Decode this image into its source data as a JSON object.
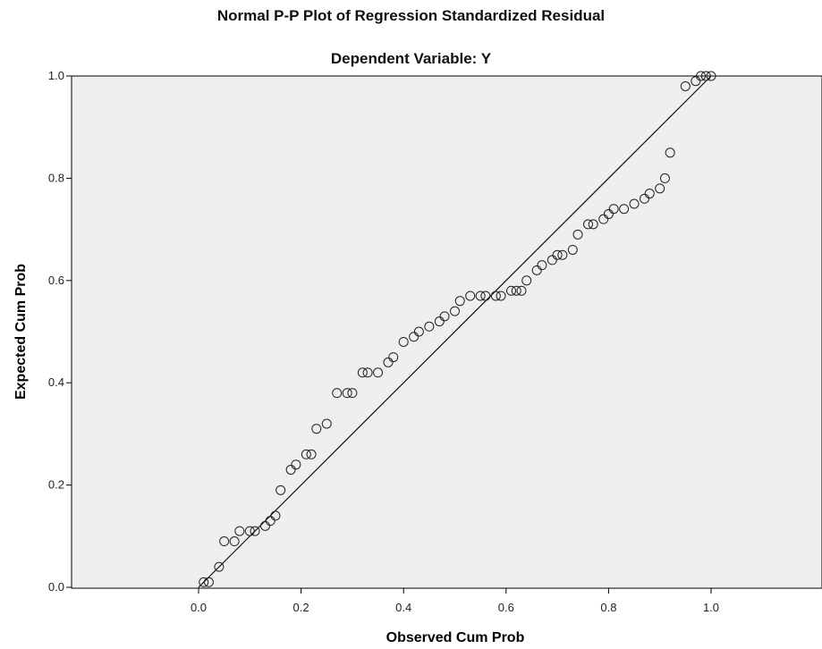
{
  "chart_data": {
    "type": "scatter",
    "title": "Normal P-P Plot of Regression Standardized Residual",
    "subtitle": "Dependent Variable: Y",
    "xlabel": "Observed Cum Prob",
    "ylabel": "Expected Cum Prob",
    "xlim": [
      0,
      1
    ],
    "ylim": [
      0,
      1
    ],
    "x_tick_labels": [
      "0.0",
      "0.2",
      "0.4",
      "0.6",
      "0.8",
      "1.0"
    ],
    "y_tick_labels": [
      "0.0",
      "0.2",
      "0.4",
      "0.6",
      "0.8",
      "1.0"
    ],
    "x_ticks": [
      0,
      0.2,
      0.4,
      0.6,
      0.8,
      1.0
    ],
    "y_ticks": [
      0,
      0.2,
      0.4,
      0.6,
      0.8,
      1.0
    ],
    "reference_line": {
      "x": [
        0,
        1
      ],
      "y": [
        0,
        1
      ]
    },
    "plot_background": "#efefef",
    "marker": "open-circle",
    "points": [
      {
        "x": 0.01,
        "y": 0.01
      },
      {
        "x": 0.02,
        "y": 0.01
      },
      {
        "x": 0.04,
        "y": 0.04
      },
      {
        "x": 0.05,
        "y": 0.09
      },
      {
        "x": 0.07,
        "y": 0.09
      },
      {
        "x": 0.08,
        "y": 0.11
      },
      {
        "x": 0.1,
        "y": 0.11
      },
      {
        "x": 0.11,
        "y": 0.11
      },
      {
        "x": 0.13,
        "y": 0.12
      },
      {
        "x": 0.14,
        "y": 0.13
      },
      {
        "x": 0.15,
        "y": 0.14
      },
      {
        "x": 0.16,
        "y": 0.19
      },
      {
        "x": 0.18,
        "y": 0.23
      },
      {
        "x": 0.19,
        "y": 0.24
      },
      {
        "x": 0.21,
        "y": 0.26
      },
      {
        "x": 0.22,
        "y": 0.26
      },
      {
        "x": 0.23,
        "y": 0.31
      },
      {
        "x": 0.25,
        "y": 0.32
      },
      {
        "x": 0.27,
        "y": 0.38
      },
      {
        "x": 0.29,
        "y": 0.38
      },
      {
        "x": 0.3,
        "y": 0.38
      },
      {
        "x": 0.32,
        "y": 0.42
      },
      {
        "x": 0.33,
        "y": 0.42
      },
      {
        "x": 0.35,
        "y": 0.42
      },
      {
        "x": 0.37,
        "y": 0.44
      },
      {
        "x": 0.38,
        "y": 0.45
      },
      {
        "x": 0.4,
        "y": 0.48
      },
      {
        "x": 0.42,
        "y": 0.49
      },
      {
        "x": 0.43,
        "y": 0.5
      },
      {
        "x": 0.45,
        "y": 0.51
      },
      {
        "x": 0.47,
        "y": 0.52
      },
      {
        "x": 0.48,
        "y": 0.53
      },
      {
        "x": 0.5,
        "y": 0.54
      },
      {
        "x": 0.51,
        "y": 0.56
      },
      {
        "x": 0.53,
        "y": 0.57
      },
      {
        "x": 0.55,
        "y": 0.57
      },
      {
        "x": 0.56,
        "y": 0.57
      },
      {
        "x": 0.58,
        "y": 0.57
      },
      {
        "x": 0.59,
        "y": 0.57
      },
      {
        "x": 0.61,
        "y": 0.58
      },
      {
        "x": 0.62,
        "y": 0.58
      },
      {
        "x": 0.63,
        "y": 0.58
      },
      {
        "x": 0.64,
        "y": 0.6
      },
      {
        "x": 0.66,
        "y": 0.62
      },
      {
        "x": 0.67,
        "y": 0.63
      },
      {
        "x": 0.69,
        "y": 0.64
      },
      {
        "x": 0.7,
        "y": 0.65
      },
      {
        "x": 0.71,
        "y": 0.65
      },
      {
        "x": 0.73,
        "y": 0.66
      },
      {
        "x": 0.74,
        "y": 0.69
      },
      {
        "x": 0.76,
        "y": 0.71
      },
      {
        "x": 0.77,
        "y": 0.71
      },
      {
        "x": 0.79,
        "y": 0.72
      },
      {
        "x": 0.8,
        "y": 0.73
      },
      {
        "x": 0.81,
        "y": 0.74
      },
      {
        "x": 0.83,
        "y": 0.74
      },
      {
        "x": 0.85,
        "y": 0.75
      },
      {
        "x": 0.87,
        "y": 0.76
      },
      {
        "x": 0.88,
        "y": 0.77
      },
      {
        "x": 0.9,
        "y": 0.78
      },
      {
        "x": 0.91,
        "y": 0.8
      },
      {
        "x": 0.92,
        "y": 0.85
      },
      {
        "x": 0.95,
        "y": 0.98
      },
      {
        "x": 0.97,
        "y": 0.99
      },
      {
        "x": 0.98,
        "y": 1.0
      },
      {
        "x": 0.99,
        "y": 1.0
      },
      {
        "x": 1.0,
        "y": 1.0
      }
    ]
  }
}
